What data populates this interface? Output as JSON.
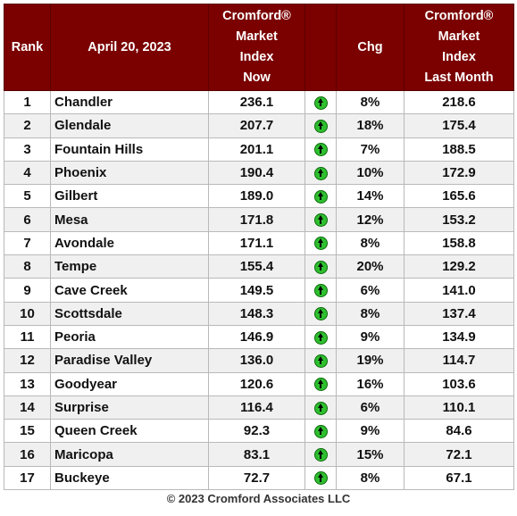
{
  "table": {
    "headers": {
      "rank": "Rank",
      "date": "April 20, 2023",
      "now": [
        "Cromford®",
        "Market",
        "Index",
        "Now"
      ],
      "icon": "",
      "chg": "Chg",
      "last": [
        "Cromford®",
        "Market",
        "Index",
        "Last Month"
      ]
    },
    "rows": [
      {
        "rank": "1",
        "city": "Chandler",
        "now": "236.1",
        "chg": "8%",
        "last": "218.6"
      },
      {
        "rank": "2",
        "city": "Glendale",
        "now": "207.7",
        "chg": "18%",
        "last": "175.4"
      },
      {
        "rank": "3",
        "city": "Fountain Hills",
        "now": "201.1",
        "chg": "7%",
        "last": "188.5"
      },
      {
        "rank": "4",
        "city": "Phoenix",
        "now": "190.4",
        "chg": "10%",
        "last": "172.9"
      },
      {
        "rank": "5",
        "city": "Gilbert",
        "now": "189.0",
        "chg": "14%",
        "last": "165.6"
      },
      {
        "rank": "6",
        "city": "Mesa",
        "now": "171.8",
        "chg": "12%",
        "last": "153.2"
      },
      {
        "rank": "7",
        "city": "Avondale",
        "now": "171.1",
        "chg": "8%",
        "last": "158.8"
      },
      {
        "rank": "8",
        "city": "Tempe",
        "now": "155.4",
        "chg": "20%",
        "last": "129.2"
      },
      {
        "rank": "9",
        "city": "Cave Creek",
        "now": "149.5",
        "chg": "6%",
        "last": "141.0"
      },
      {
        "rank": "10",
        "city": "Scottsdale",
        "now": "148.3",
        "chg": "8%",
        "last": "137.4"
      },
      {
        "rank": "11",
        "city": "Peoria",
        "now": "146.9",
        "chg": "9%",
        "last": "134.9"
      },
      {
        "rank": "12",
        "city": "Paradise Valley",
        "now": "136.0",
        "chg": "19%",
        "last": "114.7"
      },
      {
        "rank": "13",
        "city": "Goodyear",
        "now": "120.6",
        "chg": "16%",
        "last": "103.6"
      },
      {
        "rank": "14",
        "city": "Surprise",
        "now": "116.4",
        "chg": "6%",
        "last": "110.1"
      },
      {
        "rank": "15",
        "city": "Queen Creek",
        "now": "92.3",
        "chg": "9%",
        "last": "84.6"
      },
      {
        "rank": "16",
        "city": "Maricopa",
        "now": "83.1",
        "chg": "15%",
        "last": "72.1"
      },
      {
        "rank": "17",
        "city": "Buckeye",
        "now": "72.7",
        "chg": "8%",
        "last": "67.1"
      }
    ],
    "trend_icon": "up-arrow-icon",
    "colors": {
      "header_bg": "#7b0000",
      "header_text": "#ffffff",
      "icon_green": "#2fbf2f"
    }
  },
  "footer": "© 2023 Cromford Associates LLC",
  "chart_data": {
    "type": "table",
    "columns": [
      "Rank",
      "April 20, 2023",
      "Cromford® Market Index Now",
      "",
      "Chg",
      "Cromford® Market Index Last Month"
    ],
    "rows": [
      [
        1,
        "Chandler",
        236.1,
        "up",
        "8%",
        218.6
      ],
      [
        2,
        "Glendale",
        207.7,
        "up",
        "18%",
        175.4
      ],
      [
        3,
        "Fountain Hills",
        201.1,
        "up",
        "7%",
        188.5
      ],
      [
        4,
        "Phoenix",
        190.4,
        "up",
        "10%",
        172.9
      ],
      [
        5,
        "Gilbert",
        189.0,
        "up",
        "14%",
        165.6
      ],
      [
        6,
        "Mesa",
        171.8,
        "up",
        "12%",
        153.2
      ],
      [
        7,
        "Avondale",
        171.1,
        "up",
        "8%",
        158.8
      ],
      [
        8,
        "Tempe",
        155.4,
        "up",
        "20%",
        129.2
      ],
      [
        9,
        "Cave Creek",
        149.5,
        "up",
        "6%",
        141.0
      ],
      [
        10,
        "Scottsdale",
        148.3,
        "up",
        "8%",
        137.4
      ],
      [
        11,
        "Peoria",
        146.9,
        "up",
        "9%",
        134.9
      ],
      [
        12,
        "Paradise Valley",
        136.0,
        "up",
        "19%",
        114.7
      ],
      [
        13,
        "Goodyear",
        120.6,
        "up",
        "16%",
        103.6
      ],
      [
        14,
        "Surprise",
        116.4,
        "up",
        "6%",
        110.1
      ],
      [
        15,
        "Queen Creek",
        92.3,
        "up",
        "9%",
        84.6
      ],
      [
        16,
        "Maricopa",
        83.1,
        "up",
        "15%",
        72.1
      ],
      [
        17,
        "Buckeye",
        72.7,
        "up",
        "8%",
        67.1
      ]
    ]
  }
}
